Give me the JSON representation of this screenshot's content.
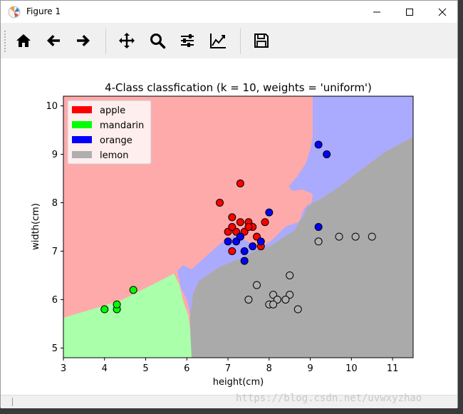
{
  "window": {
    "title": "Figure 1",
    "controls": [
      "minimize",
      "maximize",
      "close"
    ]
  },
  "toolbar": {
    "tools": [
      {
        "name": "home",
        "icon": "home-icon"
      },
      {
        "name": "back",
        "icon": "arrow-left-icon"
      },
      {
        "name": "forward",
        "icon": "arrow-right-icon"
      },
      {
        "name": "pan",
        "icon": "move-icon"
      },
      {
        "name": "zoom",
        "icon": "magnifier-icon"
      },
      {
        "name": "subplots",
        "icon": "sliders-icon"
      },
      {
        "name": "edit-axes",
        "icon": "line-chart-icon"
      },
      {
        "name": "save",
        "icon": "floppy-disk-icon"
      }
    ]
  },
  "status": {
    "watermark": "https://blog.csdn.net/uvwxyzhao"
  },
  "chart_data": {
    "type": "scatter",
    "title": "4-Class classfication (k = 10, weights = 'uniform')",
    "xlabel": "height(cm)",
    "ylabel": "width(cm)",
    "xlim": [
      3,
      11.5
    ],
    "ylim": [
      4.8,
      10.2
    ],
    "xticks": [
      "3",
      "4",
      "5",
      "6",
      "7",
      "8",
      "9",
      "10",
      "11"
    ],
    "yticks": [
      "5",
      "6",
      "7",
      "8",
      "9",
      "10"
    ],
    "legend_position": "top-left",
    "legend": [
      {
        "label": "apple",
        "color": "#ff0000"
      },
      {
        "label": "mandarin",
        "color": "#00ff00"
      },
      {
        "label": "orange",
        "color": "#0000ff"
      },
      {
        "label": "lemon",
        "color": "#afafaf"
      }
    ],
    "region_colors": {
      "apple": "#ffaaaa",
      "mandarin": "#aaffaa",
      "orange": "#aaaaff",
      "lemon": "#aaaaaa"
    },
    "series": [
      {
        "name": "apple",
        "color": "#ff0000",
        "points": [
          [
            6.8,
            8.0
          ],
          [
            7.3,
            8.4
          ],
          [
            7.1,
            7.7
          ],
          [
            7.3,
            7.6
          ],
          [
            7.5,
            7.6
          ],
          [
            7.6,
            7.5
          ],
          [
            7.9,
            7.6
          ],
          [
            7.0,
            7.4
          ],
          [
            7.2,
            7.4
          ],
          [
            7.4,
            7.4
          ],
          [
            7.1,
            7.5
          ],
          [
            7.5,
            7.5
          ],
          [
            7.3,
            7.3
          ],
          [
            7.7,
            7.3
          ],
          [
            7.8,
            7.1
          ],
          [
            7.1,
            7.0
          ]
        ]
      },
      {
        "name": "mandarin",
        "color": "#00ff00",
        "points": [
          [
            4.0,
            5.8
          ],
          [
            4.3,
            5.8
          ],
          [
            4.3,
            5.9
          ],
          [
            4.7,
            6.2
          ]
        ]
      },
      {
        "name": "orange",
        "color": "#0000ff",
        "points": [
          [
            9.2,
            9.2
          ],
          [
            9.4,
            9.0
          ],
          [
            8.0,
            7.8
          ],
          [
            9.2,
            7.5
          ],
          [
            7.2,
            7.2
          ],
          [
            7.0,
            7.2
          ],
          [
            7.3,
            7.3
          ],
          [
            7.6,
            7.1
          ],
          [
            7.8,
            7.2
          ],
          [
            7.4,
            7.0
          ],
          [
            7.4,
            6.8
          ]
        ]
      },
      {
        "name": "lemon",
        "color": "#afafaf",
        "points": [
          [
            9.7,
            7.3
          ],
          [
            10.1,
            7.3
          ],
          [
            10.5,
            7.3
          ],
          [
            9.2,
            7.2
          ],
          [
            8.5,
            6.5
          ],
          [
            7.7,
            6.3
          ],
          [
            7.5,
            6.0
          ],
          [
            8.1,
            6.1
          ],
          [
            8.5,
            6.1
          ],
          [
            8.2,
            6.0
          ],
          [
            8.4,
            6.0
          ],
          [
            8.0,
            5.9
          ],
          [
            8.1,
            5.9
          ],
          [
            8.7,
            5.8
          ]
        ]
      }
    ]
  }
}
